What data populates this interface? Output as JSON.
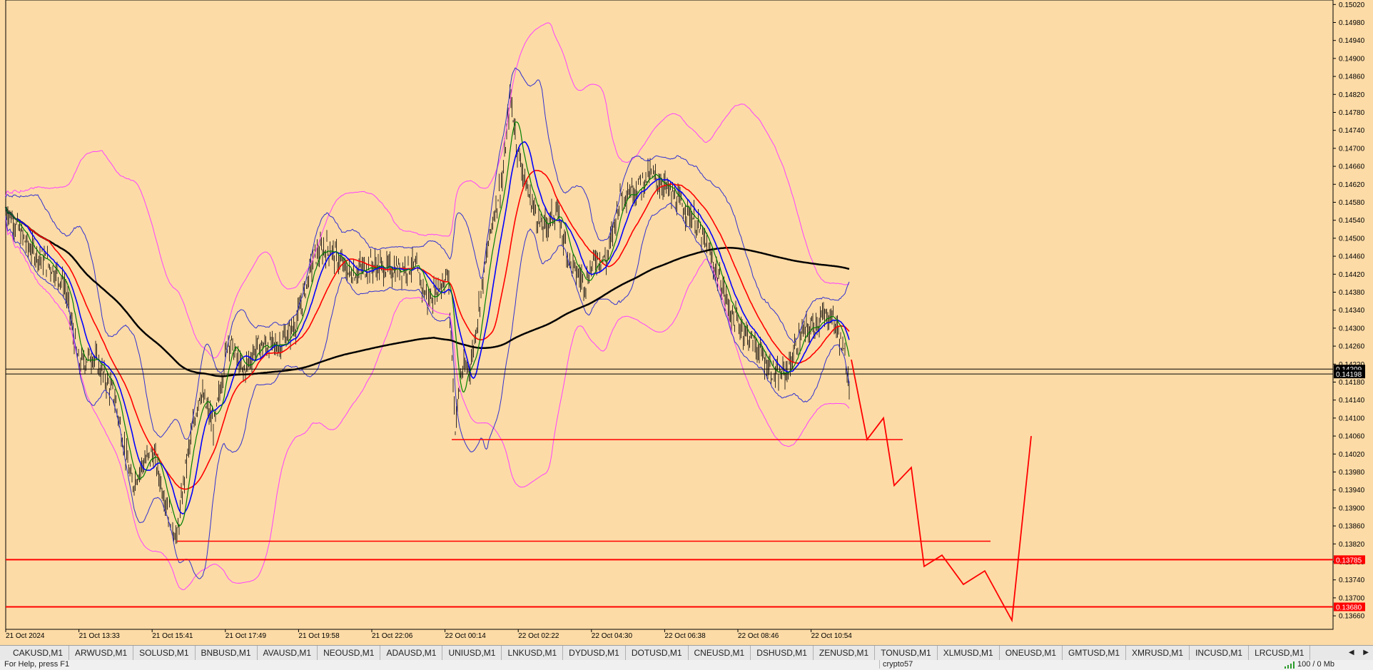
{
  "chart": {
    "background": "#fddba6",
    "axis_background": "#fddba6",
    "grid_on": false,
    "price_labels": [
      "0.15020",
      "0.14980",
      "0.14940",
      "0.14900",
      "0.14860",
      "0.14820",
      "0.14780",
      "0.14740",
      "0.14700",
      "0.14660",
      "0.14620",
      "0.14580",
      "0.14540",
      "0.14500",
      "0.14460",
      "0.14420",
      "0.14380",
      "0.14340",
      "0.14300",
      "0.14260",
      "0.14220",
      "0.14180",
      "0.14140",
      "0.14100",
      "0.14060",
      "0.14020",
      "0.13980",
      "0.13940",
      "0.13900",
      "0.13860",
      "0.13820",
      "0.13780",
      "0.13740",
      "0.13700",
      "0.13660"
    ],
    "time_labels": [
      "21 Oct 2024",
      "21 Oct 13:33",
      "21 Oct 15:41",
      "21 Oct 17:49",
      "21 Oct 19:58",
      "21 Oct 22:06",
      "22 Oct 00:14",
      "22 Oct 02:22",
      "22 Oct 04:30",
      "22 Oct 06:38",
      "22 Oct 08:46",
      "22 Oct 10:54"
    ],
    "current_price_marker": {
      "value": "0.14198",
      "color": "#000000"
    },
    "current_price_marker_top": {
      "value": "0.14209",
      "color": "#000000"
    },
    "horizontal_levels": [
      {
        "value": "0.13785",
        "color": "#ff0000"
      },
      {
        "value": "0.13680",
        "color": "#ff0000"
      }
    ],
    "colors": {
      "candles": "#000000",
      "ma_long": "#000000",
      "ma_red": "#ff0000",
      "ma_blue": "#0000ff",
      "ma_green": "#008000",
      "bands_outer": "#ff40ff",
      "bands_inner": "#3030d0",
      "projection": "#ff0000"
    }
  },
  "tabs": [
    "CAKUSD,M1",
    "ARWUSD,M1",
    "SOLUSD,M1",
    "BNBUSD,M1",
    "AVAUSD,M1",
    "NEOUSD,M1",
    "ADAUSD,M1",
    "UNIUSD,M1",
    "LNKUSD,M1",
    "DYDUSD,M1",
    "DOTUSD,M1",
    "CNEUSD,M1",
    "DSHUSD,M1",
    "ZENUSD,M1",
    "TONUSD,M1",
    "XLMUSD,M1",
    "ONEUSD,M1",
    "GMTUSD,M1",
    "XMRUSD,M1",
    "INCUSD,M1",
    "LRCUSD,M1"
  ],
  "tab_arrows": {
    "left": "◀",
    "right": "▶"
  },
  "status": {
    "help": "For Help, press F1",
    "profile": "crypto57",
    "traffic": "100 / 0 Mb"
  }
}
